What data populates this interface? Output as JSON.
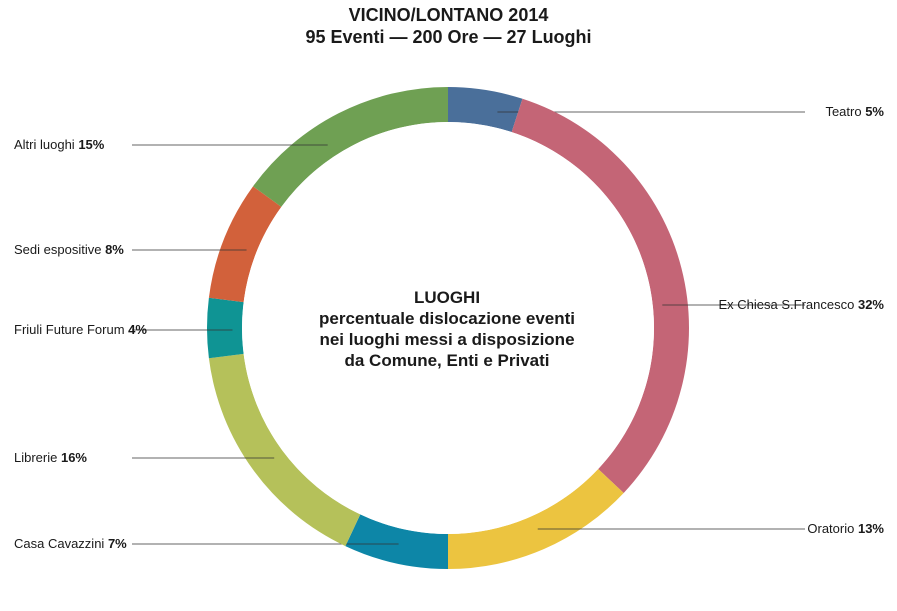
{
  "title": {
    "line1": "VICINO/LONTANO 2014",
    "line2": "95 Eventi — 200 Ore — 27 Luoghi"
  },
  "center": {
    "line1": "LUOGHI",
    "line2": "percentuale dislocazione eventi",
    "line3": "nei luoghi messi a disposizione",
    "line4": "da Comune, Enti e Privati"
  },
  "chart_data": {
    "type": "pie",
    "style": "donut",
    "slices": [
      {
        "label": "Teatro",
        "value": 5,
        "display": "5%",
        "color": "#4a6f9a"
      },
      {
        "label": "Ex Chiesa S.Francesco",
        "value": 32,
        "display": "32%",
        "color": "#c46576"
      },
      {
        "label": "Oratorio",
        "value": 13,
        "display": "13%",
        "color": "#ecc440"
      },
      {
        "label": "Casa Cavazzini",
        "value": 7,
        "display": "7%",
        "color": "#0d86a7"
      },
      {
        "label": "Librerie",
        "value": 16,
        "display": "16%",
        "color": "#b5c15a"
      },
      {
        "label": "Friuli Future Forum",
        "value": 4,
        "display": "4%",
        "color": "#0f9494"
      },
      {
        "label": "Sedi espositive",
        "value": 8,
        "display": "8%",
        "color": "#d2613b"
      },
      {
        "label": "Altri luoghi",
        "value": 15,
        "display": "15%",
        "color": "#6fa053"
      }
    ]
  }
}
